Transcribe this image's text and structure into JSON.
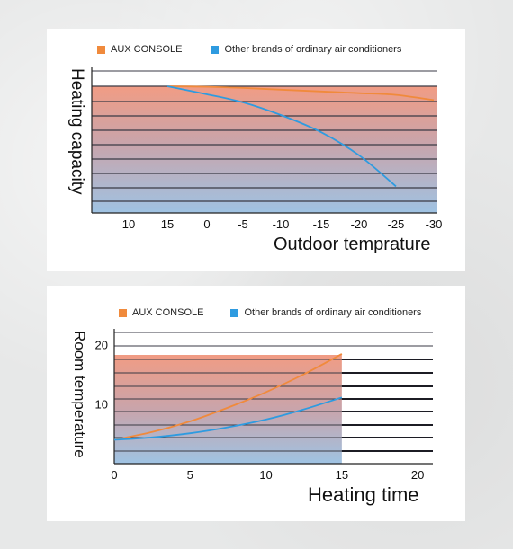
{
  "legend": {
    "aux": "AUX CONSOLE",
    "other": "Other brands of ordinary air conditioners",
    "aux_color": "#f08a3c",
    "other_color": "#2e9be0"
  },
  "chart_data": [
    {
      "type": "line",
      "title": "",
      "ylabel": "Heating capacity",
      "xlabel": "Outdoor temprature",
      "x_tick_labels": [
        "10",
        "15",
        "0",
        "-5",
        "-10",
        "-15",
        "-20",
        "-25",
        "-30"
      ],
      "grid": true,
      "series": [
        {
          "name": "AUX CONSOLE",
          "color": "#f08a3c",
          "x": [
            15,
            0,
            -5,
            -10,
            -15,
            -20,
            -25,
            -30
          ],
          "y": [
            1.0,
            0.995,
            0.985,
            0.97,
            0.955,
            0.94,
            0.925,
            0.88
          ]
        },
        {
          "name": "Other brands of ordinary air conditioners",
          "color": "#2e9be0",
          "x": [
            15,
            0,
            -5,
            -10,
            -15,
            -20,
            -25
          ],
          "y": [
            1.0,
            0.93,
            0.86,
            0.75,
            0.6,
            0.4,
            0.13
          ]
        }
      ]
    },
    {
      "type": "line",
      "title": "",
      "ylabel": "Room temperature",
      "xlabel": "Heating time",
      "x_ticks": [
        0,
        5,
        10,
        15,
        20
      ],
      "y_ticks": [
        10,
        20
      ],
      "xlim": [
        0,
        21
      ],
      "ylim": [
        0,
        22
      ],
      "grid": true,
      "series": [
        {
          "name": "AUX CONSOLE",
          "color": "#f08a3c",
          "x": [
            0,
            2.5,
            5,
            7.5,
            10,
            12.5,
            15
          ],
          "y": [
            4,
            5.3,
            7.1,
            9.4,
            12.0,
            15.0,
            18.4
          ]
        },
        {
          "name": "Other brands of ordinary air conditioners",
          "color": "#2e9be0",
          "x": [
            0,
            2.5,
            5,
            7.5,
            10,
            12.5,
            15
          ],
          "y": [
            4,
            4.4,
            5.1,
            6.1,
            7.4,
            9.1,
            11.1
          ]
        }
      ]
    }
  ]
}
